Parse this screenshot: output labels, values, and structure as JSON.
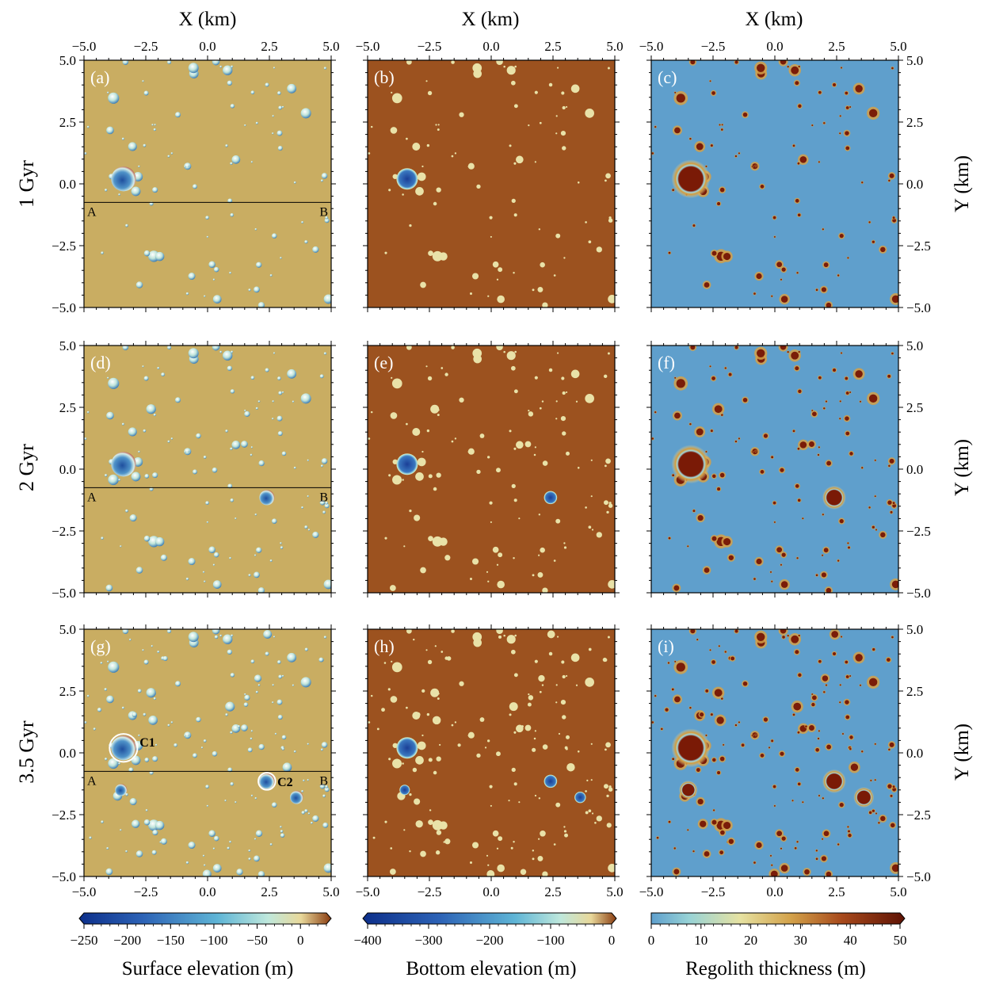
{
  "chart_data": {
    "type": "heatmap",
    "title": "",
    "x_axis": {
      "label": "X (km)",
      "range": [
        -5.0,
        5.0
      ],
      "ticks": [
        "−5.0",
        "−2.5",
        "0.0",
        "2.5",
        "5.0"
      ]
    },
    "y_axis": {
      "label": "Y (km)",
      "range": [
        -5.0,
        5.0
      ],
      "ticks": [
        "5.0",
        "2.5",
        "0.0",
        "−2.5",
        "−5.0"
      ]
    },
    "rows": [
      {
        "label": "1 Gyr",
        "panels": [
          "(a)",
          "(b)",
          "(c)"
        ]
      },
      {
        "label": "2 Gyr",
        "panels": [
          "(d)",
          "(e)",
          "(f)"
        ]
      },
      {
        "label": "3.5 Gyr",
        "panels": [
          "(g)",
          "(h)",
          "(i)"
        ]
      }
    ],
    "columns": [
      {
        "variable": "Surface elevation (m)",
        "colorbar_ticks": [
          "−250",
          "−200",
          "−150",
          "−100",
          "−50",
          "0"
        ],
        "range": [
          -250,
          30
        ]
      },
      {
        "variable": "Bottom elevation (m)",
        "colorbar_ticks": [
          "−400",
          "−300",
          "−200",
          "−100",
          "0"
        ],
        "range": [
          -400,
          0
        ]
      },
      {
        "variable": "Regolith thickness (m)",
        "colorbar_ticks": [
          "0",
          "10",
          "20",
          "30",
          "40",
          "50"
        ],
        "range": [
          0,
          50
        ]
      }
    ],
    "profile": {
      "y_km": -0.75,
      "start_label": "A",
      "end_label": "B"
    },
    "major_craters": [
      {
        "x_km": -3.4,
        "y_km": 0.2,
        "r_km": 0.62,
        "appears_at": "1 Gyr",
        "label": "C1"
      },
      {
        "x_km": 2.4,
        "y_km": -1.15,
        "r_km": 0.38,
        "appears_at": "2 Gyr",
        "label": "C2"
      },
      {
        "x_km": -3.5,
        "y_km": -1.5,
        "r_km": 0.3,
        "appears_at": "3.5 Gyr"
      },
      {
        "x_km": 3.6,
        "y_km": -1.8,
        "r_km": 0.33,
        "appears_at": "3.5 Gyr"
      }
    ]
  },
  "colors": {
    "surface_bg": "#c9ad62",
    "bottom_bg": "#9c521f",
    "regolith_bg": "#5f9fcc",
    "crater_floor": "#2a5aa8",
    "regolith_thick": "#7a1c08"
  }
}
